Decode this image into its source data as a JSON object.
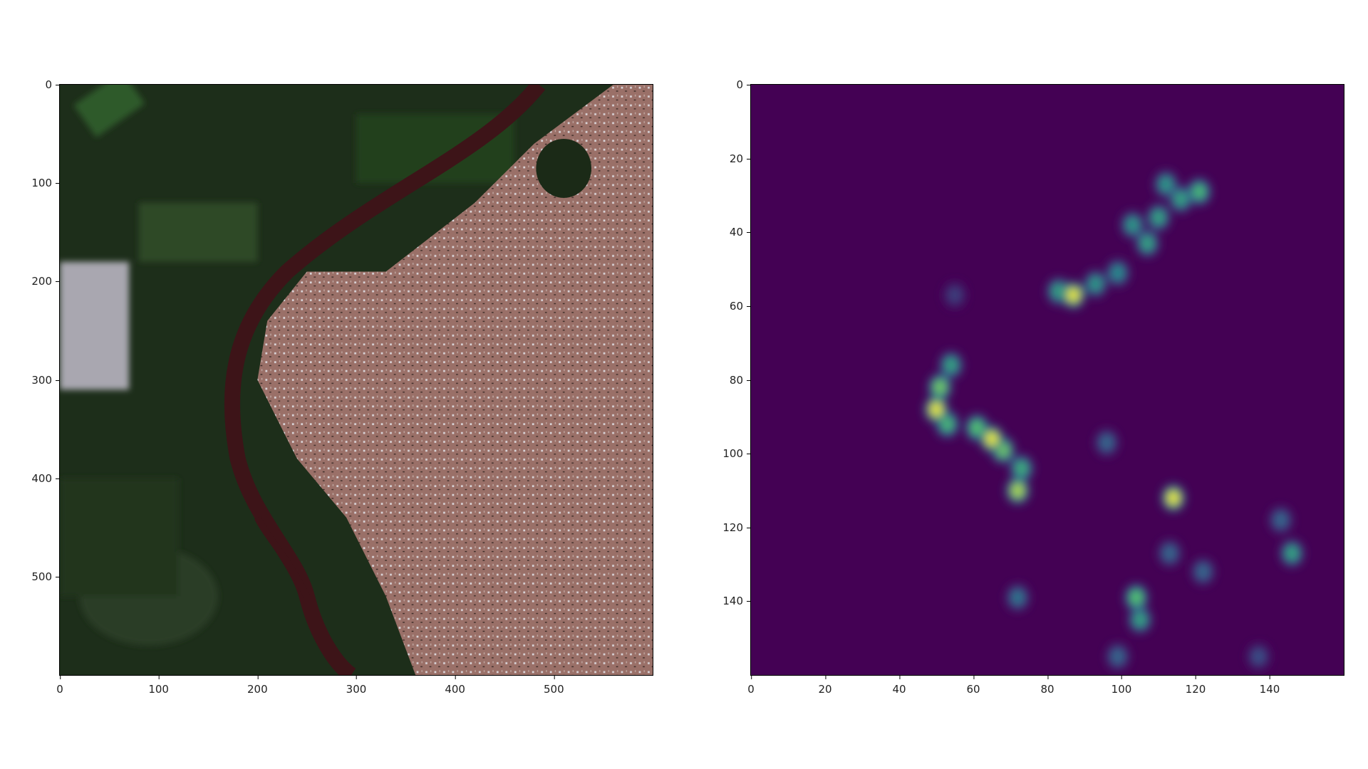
{
  "chart_data": [
    {
      "type": "image",
      "title": "",
      "xlim": [
        0,
        600
      ],
      "ylim": [
        600,
        0
      ],
      "xticks": [
        "0",
        "100",
        "200",
        "300",
        "400",
        "500"
      ],
      "yticks": [
        "0",
        "100",
        "200",
        "300",
        "400",
        "500"
      ],
      "grid": false,
      "colors": {
        "vegetation": "#1d2e1a",
        "field": "#2f5a2a",
        "urban": "#9a7068",
        "river": "#3d1418",
        "built": "#c9c2c4"
      }
    },
    {
      "type": "heatmap",
      "title": "",
      "colormap": "viridis",
      "xlim": [
        0,
        160
      ],
      "ylim": [
        160,
        0
      ],
      "xticks": [
        "0",
        "20",
        "40",
        "60",
        "80",
        "100",
        "120",
        "140"
      ],
      "yticks": [
        "0",
        "20",
        "40",
        "60",
        "80",
        "100",
        "120",
        "140"
      ],
      "grid": false,
      "hotspots": [
        {
          "x": 87,
          "y": 57,
          "v": 1.0
        },
        {
          "x": 83,
          "y": 56,
          "v": 0.6
        },
        {
          "x": 93,
          "y": 54,
          "v": 0.55
        },
        {
          "x": 99,
          "y": 51,
          "v": 0.5
        },
        {
          "x": 103,
          "y": 38,
          "v": 0.55
        },
        {
          "x": 107,
          "y": 43,
          "v": 0.6
        },
        {
          "x": 110,
          "y": 36,
          "v": 0.6
        },
        {
          "x": 112,
          "y": 27,
          "v": 0.55
        },
        {
          "x": 116,
          "y": 31,
          "v": 0.6
        },
        {
          "x": 121,
          "y": 29,
          "v": 0.7
        },
        {
          "x": 50,
          "y": 88,
          "v": 1.0
        },
        {
          "x": 51,
          "y": 82,
          "v": 0.8
        },
        {
          "x": 54,
          "y": 76,
          "v": 0.6
        },
        {
          "x": 53,
          "y": 92,
          "v": 0.7
        },
        {
          "x": 65,
          "y": 96,
          "v": 1.0
        },
        {
          "x": 61,
          "y": 93,
          "v": 0.75
        },
        {
          "x": 68,
          "y": 99,
          "v": 0.8
        },
        {
          "x": 72,
          "y": 110,
          "v": 0.9
        },
        {
          "x": 73,
          "y": 104,
          "v": 0.65
        },
        {
          "x": 114,
          "y": 112,
          "v": 1.0
        },
        {
          "x": 146,
          "y": 127,
          "v": 0.6
        },
        {
          "x": 143,
          "y": 118,
          "v": 0.35
        },
        {
          "x": 104,
          "y": 139,
          "v": 0.75
        },
        {
          "x": 105,
          "y": 145,
          "v": 0.6
        },
        {
          "x": 72,
          "y": 139,
          "v": 0.4
        },
        {
          "x": 113,
          "y": 127,
          "v": 0.35
        },
        {
          "x": 122,
          "y": 132,
          "v": 0.35
        },
        {
          "x": 96,
          "y": 97,
          "v": 0.35
        },
        {
          "x": 55,
          "y": 57,
          "v": 0.2
        },
        {
          "x": 99,
          "y": 155,
          "v": 0.35
        },
        {
          "x": 137,
          "y": 155,
          "v": 0.25
        }
      ]
    }
  ]
}
